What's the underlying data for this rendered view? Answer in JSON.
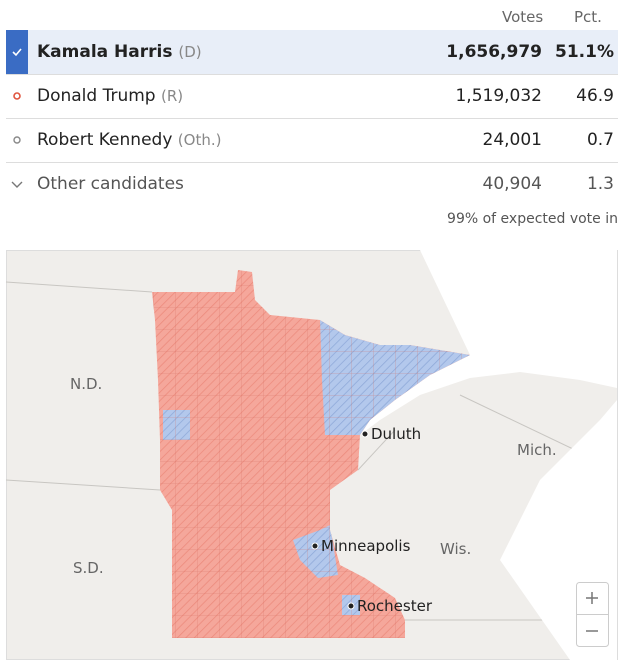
{
  "header": {
    "votes": "Votes",
    "pct": "Pct."
  },
  "candidates": [
    {
      "name": "Kamala Harris",
      "party": "(D)",
      "votes": "1,656,979",
      "pct": "51.1%"
    },
    {
      "name": "Donald Trump",
      "party": "(R)",
      "votes": "1,519,032",
      "pct": "46.9"
    },
    {
      "name": "Robert Kennedy",
      "party": "(Oth.)",
      "votes": "24,001",
      "pct": "0.7"
    },
    {
      "name": "Other candidates",
      "votes": "40,904",
      "pct": "1.3"
    }
  ],
  "footnote": "99% of expected vote in",
  "map": {
    "labels": {
      "nd": "N.D.",
      "sd": "S.D.",
      "mich": "Mich.",
      "wis": "Wis."
    },
    "cities": {
      "duluth": "Duluth",
      "minneapolis": "Minneapolis",
      "rochester": "Rochester"
    }
  }
}
